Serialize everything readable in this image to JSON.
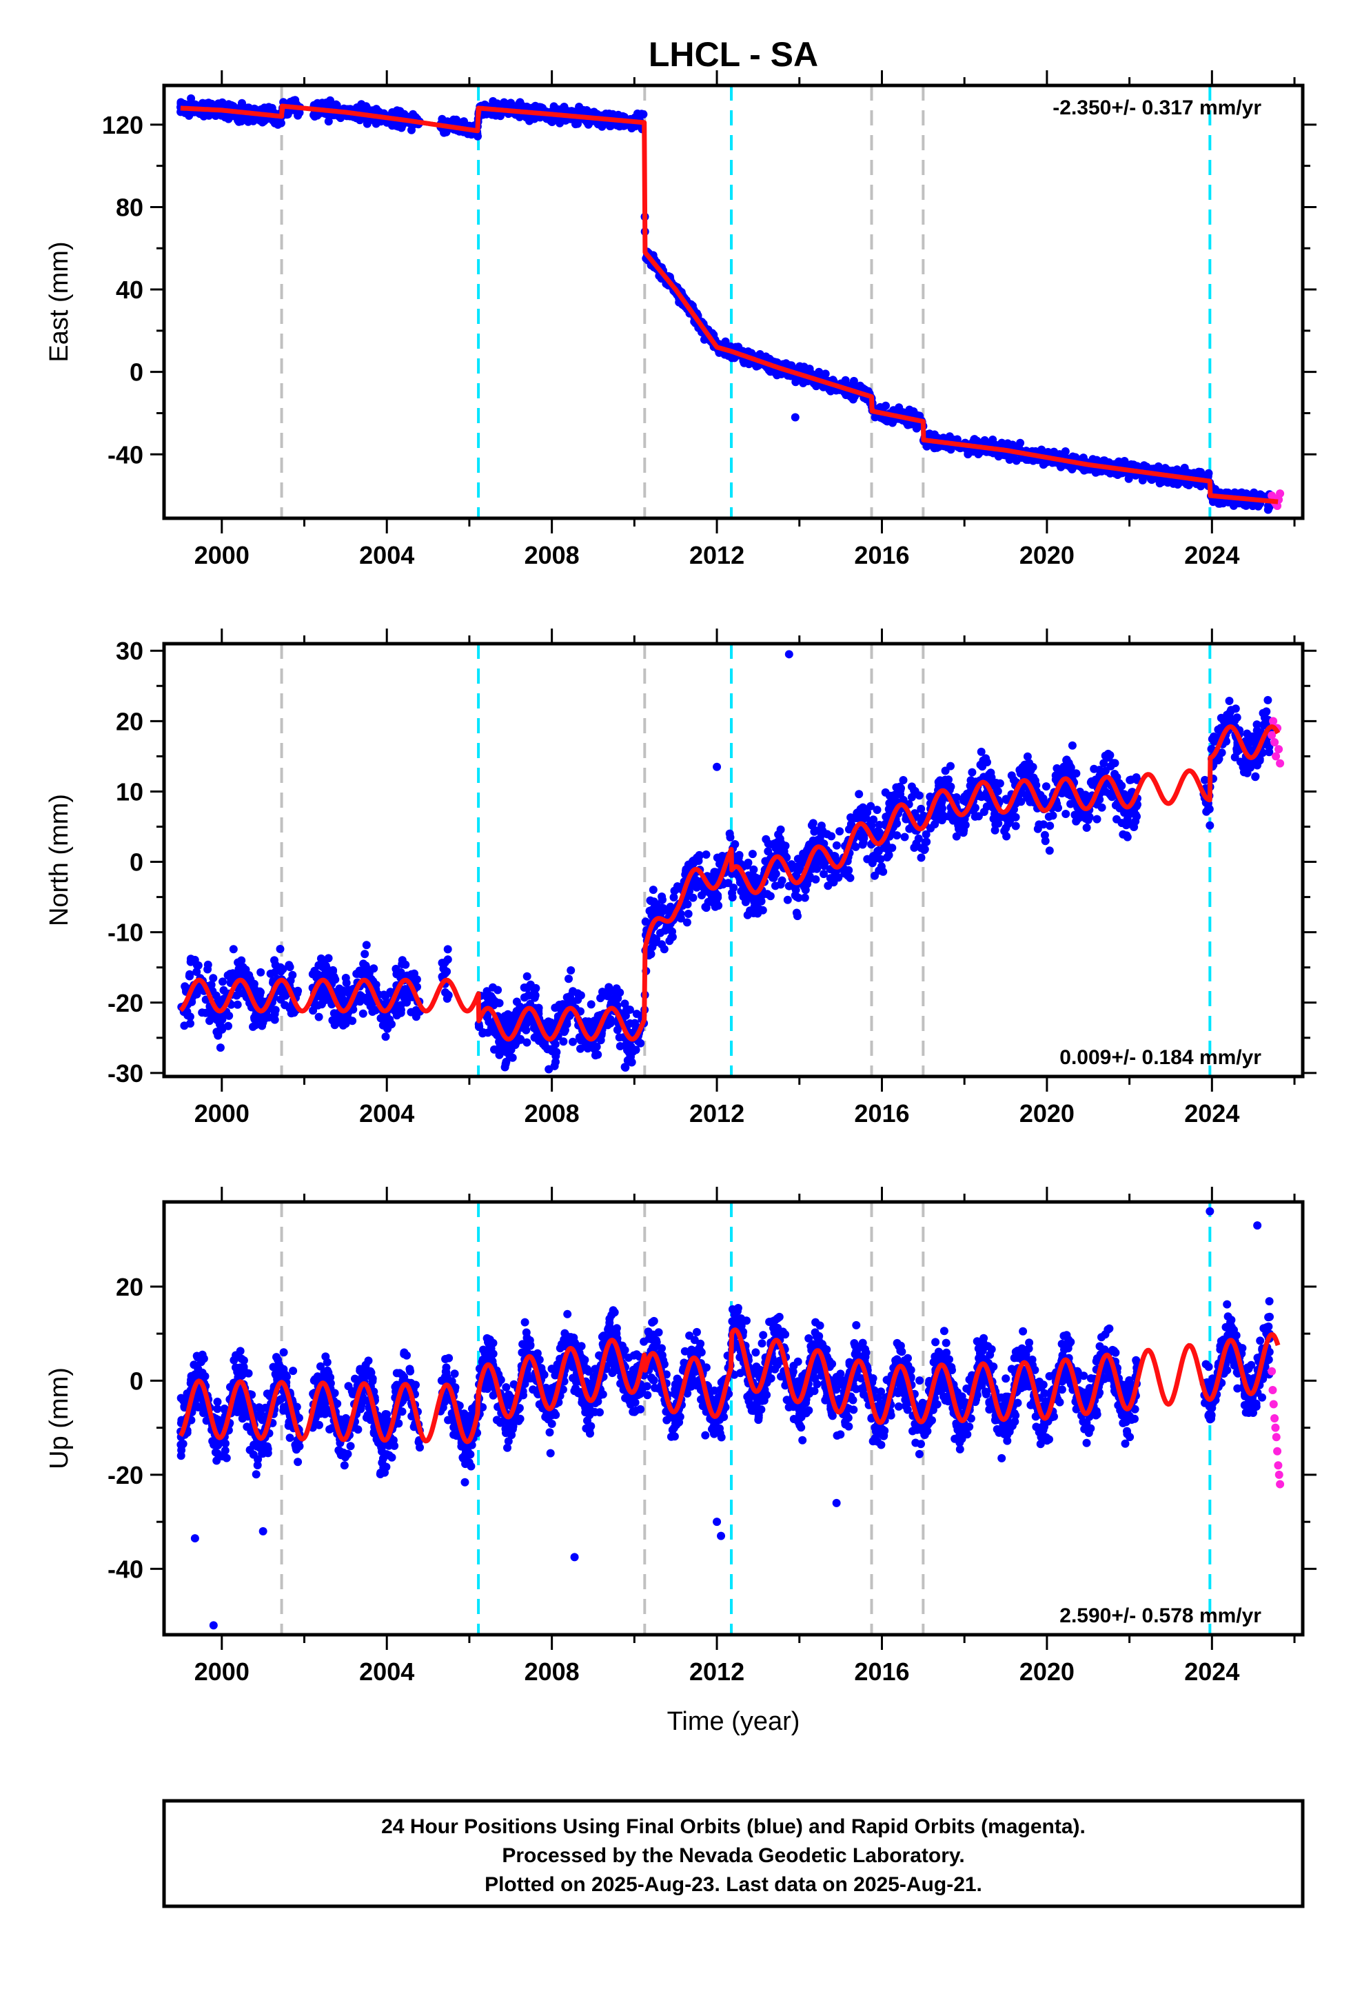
{
  "chart_data": {
    "type": "scatter",
    "title": "LHCL - SA",
    "xlabel": "Time (year)",
    "xlim": [
      1998.6,
      2026.2
    ],
    "x_ticks": [
      "2000",
      "2004",
      "2008",
      "2012",
      "2016",
      "2020",
      "2024"
    ],
    "colors": {
      "final": "#0000ff",
      "rapid": "#ff22dd",
      "model": "#ff1111",
      "antenna_change": "#00e5ff",
      "equipment_change": "#c0c0c0"
    },
    "vertical_lines": {
      "gray": [
        2001.45,
        2010.25,
        2015.75,
        2017.0
      ],
      "cyan": [
        2006.22,
        2012.35,
        2023.95
      ]
    },
    "panels": [
      {
        "component": "east",
        "ylabel": "East (mm)",
        "ylim": [
          -71,
          139
        ],
        "y_ticks": [
          "120",
          "80",
          "40",
          "0",
          "-40"
        ],
        "rate": "-2.350+/- 0.317 mm/yr",
        "rate_position": "top-right",
        "gaps": [
          [
            2001.9,
            2002.2
          ],
          [
            2004.8,
            2005.3
          ]
        ],
        "model_knots": [
          [
            1999.0,
            128
          ],
          [
            2000.0,
            127
          ],
          [
            2001.45,
            124
          ],
          [
            2001.46,
            129
          ],
          [
            2003.0,
            126
          ],
          [
            2004.5,
            122
          ],
          [
            2006.2,
            117
          ],
          [
            2006.22,
            128
          ],
          [
            2008.0,
            125
          ],
          [
            2010.24,
            121
          ],
          [
            2010.26,
            58
          ],
          [
            2011.0,
            40
          ],
          [
            2012.0,
            12
          ],
          [
            2012.35,
            10
          ],
          [
            2013.5,
            2
          ],
          [
            2015.75,
            -12
          ],
          [
            2015.76,
            -19
          ],
          [
            2017.0,
            -24
          ],
          [
            2017.01,
            -33
          ],
          [
            2019.0,
            -38
          ],
          [
            2021.0,
            -45
          ],
          [
            2023.95,
            -53
          ],
          [
            2023.96,
            -60
          ],
          [
            2025.6,
            -63
          ]
        ],
        "series": [
          {
            "name": "Final Orbits (blue)",
            "x_range": [
              1999.0,
              2025.4
            ],
            "count": 2500,
            "noise": 2.5
          },
          {
            "name": "Rapid Orbits (magenta)",
            "x_range": [
              2025.45,
              2025.65
            ],
            "values": [
              -60,
              -61,
              -63,
              -64,
              -65,
              -62,
              -59
            ]
          }
        ],
        "outliers": [
          [
            2013.9,
            -22
          ]
        ]
      },
      {
        "component": "north",
        "ylabel": "North (mm)",
        "ylim": [
          -30.5,
          31
        ],
        "y_ticks": [
          "30",
          "20",
          "10",
          "0",
          "-10",
          "-20",
          "-30"
        ],
        "rate": "0.009+/- 0.184 mm/yr",
        "rate_position": "bottom-right",
        "gaps": [
          [
            2001.9,
            2002.2
          ],
          [
            2004.8,
            2005.3
          ],
          [
            2005.5,
            2006.2
          ],
          [
            2022.2,
            2023.8
          ]
        ],
        "model_knots": [
          [
            1999.0,
            -19
          ],
          [
            2001.45,
            -19
          ],
          [
            2006.22,
            -19
          ],
          [
            2006.23,
            -23
          ],
          [
            2010.24,
            -23
          ],
          [
            2010.26,
            -13
          ],
          [
            2011.0,
            -5
          ],
          [
            2012.35,
            0
          ],
          [
            2012.36,
            -3
          ],
          [
            2014.5,
            0
          ],
          [
            2016.0,
            5
          ],
          [
            2018.0,
            9
          ],
          [
            2022.0,
            10
          ],
          [
            2023.95,
            11
          ],
          [
            2023.96,
            17
          ],
          [
            2025.6,
            17
          ]
        ],
        "seasonal_amplitude": 2.2,
        "series": [
          {
            "name": "Final Orbits (blue)",
            "x_range": [
              1999.0,
              2025.4
            ],
            "count": 2500,
            "noise": 2.8
          },
          {
            "name": "Rapid Orbits (magenta)",
            "x_range": [
              2025.45,
              2025.65
            ],
            "values": [
              18,
              20,
              17,
              15,
              19,
              16,
              14
            ]
          }
        ],
        "outliers": [
          [
            2013.75,
            29.5
          ],
          [
            2012.0,
            13.5
          ]
        ]
      },
      {
        "component": "up",
        "ylabel": "Up (mm)",
        "ylim": [
          -54,
          38
        ],
        "y_ticks": [
          "20",
          "0",
          "-20",
          "-40"
        ],
        "rate": "2.590+/- 0.578 mm/yr",
        "rate_position": "bottom-right",
        "gaps": [
          [
            2001.9,
            2002.2
          ],
          [
            2004.8,
            2005.3
          ],
          [
            2022.2,
            2023.8
          ]
        ],
        "model_knots": [
          [
            1999.0,
            -6
          ],
          [
            2006.2,
            -7
          ],
          [
            2006.22,
            -3
          ],
          [
            2010.24,
            4
          ],
          [
            2010.26,
            0
          ],
          [
            2012.34,
            -2
          ],
          [
            2012.36,
            5
          ],
          [
            2016.0,
            -3
          ],
          [
            2020.0,
            -2
          ],
          [
            2023.95,
            2
          ],
          [
            2025.6,
            4
          ]
        ],
        "seasonal_amplitude": 6.0,
        "series": [
          {
            "name": "Final Orbits (blue)",
            "x_range": [
              1999.0,
              2025.4
            ],
            "count": 3500,
            "noise": 4.5
          },
          {
            "name": "Rapid Orbits (magenta)",
            "x_range": [
              2025.45,
              2025.65
            ],
            "values": [
              2,
              -2,
              -5,
              -8,
              -10,
              -12,
              -15,
              -18,
              -20,
              -22
            ]
          }
        ],
        "outliers": [
          [
            1999.35,
            -33.5
          ],
          [
            1999.8,
            -52
          ],
          [
            2001.0,
            -32
          ],
          [
            2008.55,
            -37.5
          ],
          [
            2012.0,
            -30
          ],
          [
            2012.1,
            -33
          ],
          [
            2014.9,
            -26
          ],
          [
            2023.95,
            36
          ],
          [
            2025.1,
            33
          ]
        ]
      }
    ],
    "footer": [
      "24 Hour Positions Using Final Orbits (blue) and Rapid Orbits (magenta).",
      "Processed by the Nevada Geodetic Laboratory.",
      "Plotted on 2025-Aug-23. Last data on 2025-Aug-21."
    ]
  }
}
